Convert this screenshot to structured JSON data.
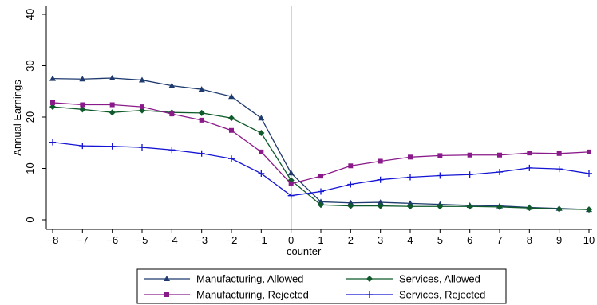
{
  "chart_data": {
    "type": "line",
    "xlabel": "counter",
    "ylabel": "Annual Earnings",
    "xlim": [
      -8,
      10
    ],
    "ylim": [
      0,
      40
    ],
    "xticks": [
      -8,
      -7,
      -6,
      -5,
      -4,
      -3,
      -2,
      -1,
      0,
      1,
      2,
      3,
      4,
      5,
      6,
      7,
      8,
      9,
      10
    ],
    "yticks": [
      0,
      10,
      20,
      30,
      40
    ],
    "reference_line_x": 0,
    "grid": false,
    "legend_placement": "bottom",
    "x": [
      -8,
      -7,
      -6,
      -5,
      -4,
      -3,
      -2,
      -1,
      0,
      1,
      2,
      3,
      4,
      5,
      6,
      7,
      8,
      9,
      10
    ],
    "series": [
      {
        "name": "Manufacturing, Allowed",
        "color": "#1f3a6e",
        "marker": "triangle",
        "values": [
          27.5,
          27.4,
          27.6,
          27.2,
          26.1,
          25.4,
          24.0,
          19.8,
          9.1,
          3.5,
          3.3,
          3.4,
          3.2,
          3.0,
          2.8,
          2.7,
          2.4,
          2.2,
          2.0
        ]
      },
      {
        "name": "Services, Allowed",
        "color": "#0e5a2a",
        "marker": "diamond",
        "values": [
          22.0,
          21.5,
          20.9,
          21.3,
          20.9,
          20.8,
          19.8,
          16.9,
          7.7,
          2.9,
          2.7,
          2.7,
          2.6,
          2.6,
          2.6,
          2.5,
          2.3,
          2.1,
          2.0
        ]
      },
      {
        "name": "Manufacturing, Rejected",
        "color": "#8a1a8a",
        "marker": "square",
        "values": [
          22.8,
          22.4,
          22.4,
          22.0,
          20.6,
          19.4,
          17.4,
          13.2,
          7.0,
          8.5,
          10.5,
          11.4,
          12.2,
          12.5,
          12.6,
          12.6,
          13.0,
          12.9,
          13.2
        ]
      },
      {
        "name": "Services, Rejected",
        "color": "#1414d4",
        "marker": "plus",
        "values": [
          15.1,
          14.4,
          14.3,
          14.1,
          13.6,
          12.9,
          11.9,
          9.0,
          4.7,
          5.5,
          6.9,
          7.8,
          8.3,
          8.6,
          8.8,
          9.3,
          10.1,
          9.9,
          9.0
        ]
      }
    ]
  }
}
